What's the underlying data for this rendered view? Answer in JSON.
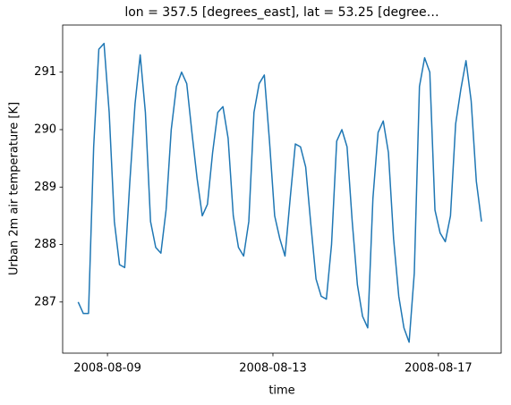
{
  "chart_data": {
    "type": "line",
    "title": "lon = 357.5 [degrees_east], lat = 53.25 [degree…",
    "xlabel": "time",
    "ylabel": "Urban 2m air temperature [K]",
    "x": [
      "2008-08-08T07:00",
      "2008-08-08T10:00",
      "2008-08-08T13:00",
      "2008-08-08T16:00",
      "2008-08-08T19:00",
      "2008-08-08T22:00",
      "2008-08-09T01:00",
      "2008-08-09T04:00",
      "2008-08-09T07:00",
      "2008-08-09T10:00",
      "2008-08-09T13:00",
      "2008-08-09T16:00",
      "2008-08-09T19:00",
      "2008-08-09T22:00",
      "2008-08-10T01:00",
      "2008-08-10T04:00",
      "2008-08-10T07:00",
      "2008-08-10T10:00",
      "2008-08-10T13:00",
      "2008-08-10T16:00",
      "2008-08-10T19:00",
      "2008-08-10T22:00",
      "2008-08-11T01:00",
      "2008-08-11T04:00",
      "2008-08-11T07:00",
      "2008-08-11T10:00",
      "2008-08-11T13:00",
      "2008-08-11T16:00",
      "2008-08-11T19:00",
      "2008-08-11T22:00",
      "2008-08-12T01:00",
      "2008-08-12T04:00",
      "2008-08-12T07:00",
      "2008-08-12T10:00",
      "2008-08-12T13:00",
      "2008-08-12T16:00",
      "2008-08-12T19:00",
      "2008-08-12T22:00",
      "2008-08-13T01:00",
      "2008-08-13T04:00",
      "2008-08-13T07:00",
      "2008-08-13T10:00",
      "2008-08-13T13:00",
      "2008-08-13T16:00",
      "2008-08-13T19:00",
      "2008-08-13T22:00",
      "2008-08-14T01:00",
      "2008-08-14T04:00",
      "2008-08-14T07:00",
      "2008-08-14T10:00",
      "2008-08-14T13:00",
      "2008-08-14T16:00",
      "2008-08-14T19:00",
      "2008-08-14T22:00",
      "2008-08-15T01:00",
      "2008-08-15T04:00",
      "2008-08-15T07:00",
      "2008-08-15T10:00",
      "2008-08-15T13:00",
      "2008-08-15T16:00",
      "2008-08-15T19:00",
      "2008-08-15T22:00",
      "2008-08-16T01:00",
      "2008-08-16T04:00",
      "2008-08-16T07:00",
      "2008-08-16T10:00",
      "2008-08-16T13:00",
      "2008-08-16T16:00",
      "2008-08-16T19:00",
      "2008-08-16T22:00",
      "2008-08-17T01:00",
      "2008-08-17T04:00",
      "2008-08-17T07:00",
      "2008-08-17T10:00",
      "2008-08-17T13:00",
      "2008-08-17T16:00",
      "2008-08-17T19:00",
      "2008-08-17T22:00",
      "2008-08-18T01:00"
    ],
    "series": [
      {
        "color": "#1f77b4",
        "values": [
          287.0,
          286.8,
          286.8,
          289.7,
          291.4,
          291.5,
          290.3,
          288.4,
          287.65,
          287.6,
          289.1,
          290.45,
          291.3,
          290.3,
          288.4,
          287.95,
          287.85,
          288.6,
          290.0,
          290.75,
          291.0,
          290.8,
          289.95,
          289.15,
          288.5,
          288.7,
          289.6,
          290.3,
          290.4,
          289.85,
          288.5,
          287.95,
          287.8,
          288.4,
          290.3,
          290.8,
          290.95,
          289.8,
          288.5,
          288.1,
          287.8,
          288.8,
          289.75,
          289.7,
          289.35,
          288.35,
          287.4,
          287.1,
          287.05,
          288.0,
          289.8,
          290.0,
          289.7,
          288.4,
          287.3,
          286.75,
          286.55,
          288.8,
          289.95,
          290.15,
          289.6,
          288.1,
          287.1,
          286.55,
          286.3,
          287.5,
          290.75,
          291.25,
          291.0,
          288.6,
          288.2,
          288.05,
          288.5,
          290.1,
          290.7,
          291.2,
          290.5,
          289.1,
          288.4
        ]
      }
    ],
    "xlim": [
      "2008-08-07T22:00",
      "2008-08-18T12:24"
    ],
    "xticks": [
      "2008-08-09",
      "2008-08-13",
      "2008-08-17"
    ],
    "ylim": [
      286.11,
      291.82
    ],
    "yticks": [
      287,
      288,
      289,
      290,
      291
    ]
  }
}
